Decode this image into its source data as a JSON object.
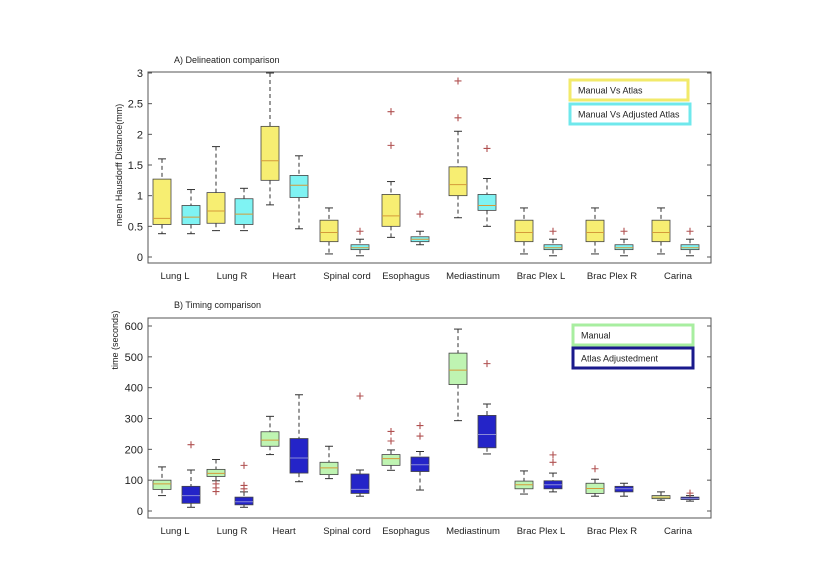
{
  "chart_data": [
    {
      "type": "boxplot",
      "title": "A) Delineation comparison",
      "xlabel": "",
      "ylabel": "mean Hausdorff Distance(mm)",
      "ylim": [
        -0.1,
        3
      ],
      "yticks": [
        0,
        0.5,
        1,
        1.5,
        2,
        2.5,
        3
      ],
      "ytick_labels": [
        "0",
        "0.5",
        "1",
        "1.5",
        "2",
        "2.5",
        "3"
      ],
      "legend_position": "top-right",
      "categories": [
        "Lung L",
        "Lung R",
        "Heart",
        "Spinal cord",
        "Esophagus",
        "Mediastinum",
        "Brac Plex L",
        "Brac Plex R",
        "Carina"
      ],
      "series": [
        {
          "name": "Manual Vs Atlas",
          "color": "#f7ee72",
          "border": "#f2ea6a",
          "stats": [
            {
              "min": 0.38,
              "q1": 0.53,
              "median": 0.63,
              "q3": 1.27,
              "max": 1.6,
              "outliers": []
            },
            {
              "min": 0.43,
              "q1": 0.55,
              "median": 0.75,
              "q3": 1.05,
              "max": 1.8,
              "outliers": []
            },
            {
              "min": 0.85,
              "q1": 1.25,
              "median": 1.57,
              "q3": 2.13,
              "max": 3.0,
              "outliers": []
            },
            {
              "min": 0.05,
              "q1": 0.25,
              "median": 0.4,
              "q3": 0.6,
              "max": 0.8,
              "outliers": []
            },
            {
              "min": 0.32,
              "q1": 0.5,
              "median": 0.67,
              "q3": 1.02,
              "max": 1.23,
              "outliers": [
                1.82,
                2.37
              ]
            },
            {
              "min": 0.64,
              "q1": 1.0,
              "median": 1.18,
              "q3": 1.47,
              "max": 2.05,
              "outliers": [
                2.27,
                2.87
              ]
            },
            {
              "min": 0.05,
              "q1": 0.25,
              "median": 0.4,
              "q3": 0.6,
              "max": 0.8,
              "outliers": []
            },
            {
              "min": 0.05,
              "q1": 0.25,
              "median": 0.4,
              "q3": 0.6,
              "max": 0.8,
              "outliers": []
            },
            {
              "min": 0.05,
              "q1": 0.25,
              "median": 0.4,
              "q3": 0.6,
              "max": 0.8,
              "outliers": []
            }
          ]
        },
        {
          "name": "Manual Vs Adjusted Atlas",
          "color": "#7ff3f3",
          "border": "#6fe8ec",
          "stats": [
            {
              "min": 0.38,
              "q1": 0.53,
              "median": 0.65,
              "q3": 0.84,
              "max": 1.1,
              "outliers": []
            },
            {
              "min": 0.43,
              "q1": 0.53,
              "median": 0.7,
              "q3": 0.95,
              "max": 1.12,
              "outliers": []
            },
            {
              "min": 0.46,
              "q1": 0.97,
              "median": 1.17,
              "q3": 1.33,
              "max": 1.65,
              "outliers": []
            },
            {
              "min": 0.02,
              "q1": 0.12,
              "median": 0.15,
              "q3": 0.2,
              "max": 0.29,
              "outliers": [
                0.42
              ]
            },
            {
              "min": 0.2,
              "q1": 0.25,
              "median": 0.29,
              "q3": 0.33,
              "max": 0.42,
              "outliers": [
                0.7
              ]
            },
            {
              "min": 0.5,
              "q1": 0.76,
              "median": 0.84,
              "q3": 1.02,
              "max": 1.28,
              "outliers": [
                1.77
              ]
            },
            {
              "min": 0.02,
              "q1": 0.12,
              "median": 0.15,
              "q3": 0.2,
              "max": 0.29,
              "outliers": [
                0.42
              ]
            },
            {
              "min": 0.02,
              "q1": 0.12,
              "median": 0.15,
              "q3": 0.2,
              "max": 0.29,
              "outliers": [
                0.42
              ]
            },
            {
              "min": 0.02,
              "q1": 0.12,
              "median": 0.15,
              "q3": 0.2,
              "max": 0.29,
              "outliers": [
                0.42
              ]
            }
          ]
        }
      ]
    },
    {
      "type": "boxplot",
      "title": "B) Timing comparison",
      "xlabel": "",
      "ylabel": "time (seconds)",
      "ylim": [
        -25,
        625
      ],
      "yticks": [
        0,
        100,
        200,
        300,
        400,
        500,
        600
      ],
      "ytick_labels": [
        "0",
        "100",
        "200",
        "300",
        "400",
        "500",
        "600"
      ],
      "legend_position": "top-right",
      "categories": [
        "Lung L",
        "Lung R",
        "Heart",
        "Spinal cord",
        "Esophagus",
        "Mediastinum",
        "Brac Plex L",
        "Brac Plex R",
        "Carina"
      ],
      "series": [
        {
          "name": "Manual",
          "color": "#bff4b2",
          "border": "#a8eea0",
          "stats": [
            {
              "min": 50,
              "q1": 70,
              "median": 88,
              "q3": 100,
              "max": 143,
              "outliers": []
            },
            {
              "min": 98,
              "q1": 112,
              "median": 122,
              "q3": 135,
              "max": 167,
              "outliers": [
                88,
                75,
                63
              ]
            },
            {
              "min": 183,
              "q1": 210,
              "median": 230,
              "q3": 257,
              "max": 307,
              "outliers": []
            },
            {
              "min": 105,
              "q1": 118,
              "median": 140,
              "q3": 158,
              "max": 210,
              "outliers": []
            },
            {
              "min": 132,
              "q1": 148,
              "median": 170,
              "q3": 183,
              "max": 198,
              "outliers": [
                227,
                258
              ]
            },
            {
              "min": 293,
              "q1": 410,
              "median": 457,
              "q3": 512,
              "max": 590,
              "outliers": []
            },
            {
              "min": 55,
              "q1": 72,
              "median": 85,
              "q3": 97,
              "max": 130,
              "outliers": []
            },
            {
              "min": 48,
              "q1": 57,
              "median": 73,
              "q3": 90,
              "max": 103,
              "outliers": [
                137
              ]
            },
            {
              "min": 35,
              "q1": 40,
              "median": 45,
              "q3": 50,
              "max": 62,
              "outliers": []
            }
          ]
        },
        {
          "name": "Atlas Adjustedment",
          "color": "#2424c8",
          "border": "#1a1a8c",
          "stats": [
            {
              "min": 12,
              "q1": 25,
              "median": 50,
              "q3": 80,
              "max": 133,
              "outliers": [
                215
              ]
            },
            {
              "min": 12,
              "q1": 20,
              "median": 30,
              "q3": 45,
              "max": 62,
              "outliers": [
                72,
                83,
                148
              ]
            },
            {
              "min": 95,
              "q1": 123,
              "median": 172,
              "q3": 235,
              "max": 377,
              "outliers": []
            },
            {
              "min": 48,
              "q1": 57,
              "median": 70,
              "q3": 120,
              "max": 133,
              "outliers": [
                373
              ]
            },
            {
              "min": 68,
              "q1": 128,
              "median": 150,
              "q3": 175,
              "max": 193,
              "outliers": [
                243,
                277
              ]
            },
            {
              "min": 185,
              "q1": 205,
              "median": 248,
              "q3": 310,
              "max": 347,
              "outliers": [
                478
              ]
            },
            {
              "min": 62,
              "q1": 72,
              "median": 85,
              "q3": 98,
              "max": 123,
              "outliers": [
                158,
                182
              ]
            },
            {
              "min": 48,
              "q1": 62,
              "median": 72,
              "q3": 80,
              "max": 90,
              "outliers": []
            },
            {
              "min": 32,
              "q1": 37,
              "median": 40,
              "q3": 45,
              "max": 50,
              "outliers": [
                58
              ]
            }
          ]
        }
      ]
    }
  ]
}
